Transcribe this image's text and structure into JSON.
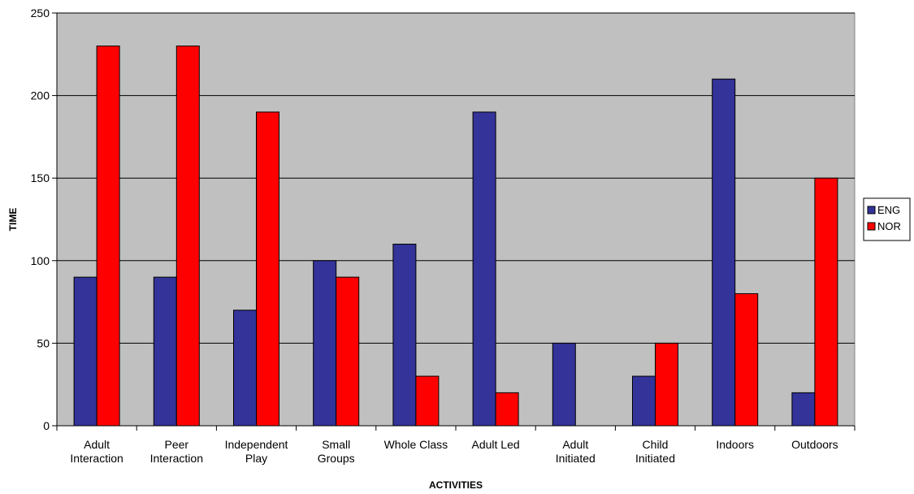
{
  "chart_data": {
    "type": "bar",
    "title": "",
    "xlabel": "ACTIVITIES",
    "ylabel": "TIME",
    "ylim": [
      0,
      250
    ],
    "yticks": [
      0,
      50,
      100,
      150,
      200,
      250
    ],
    "grid": true,
    "legend_position": "right",
    "categories": [
      [
        "Adult",
        "Interaction"
      ],
      [
        "Peer",
        "Interaction"
      ],
      [
        "Independent",
        "Play"
      ],
      [
        "Small",
        "Groups"
      ],
      [
        "Whole Class"
      ],
      [
        "Adult Led"
      ],
      [
        "Adult",
        "Initiated"
      ],
      [
        "Child",
        "Initiated"
      ],
      [
        "Indoors"
      ],
      [
        "Outdoors"
      ]
    ],
    "series": [
      {
        "name": "ENG",
        "color": "#333399",
        "values": [
          90,
          90,
          70,
          100,
          110,
          190,
          50,
          30,
          210,
          20
        ]
      },
      {
        "name": "NOR",
        "color": "#ff0000",
        "values": [
          230,
          230,
          190,
          90,
          30,
          20,
          0,
          50,
          80,
          150
        ]
      }
    ],
    "plot_background": "#c0c0c0"
  }
}
